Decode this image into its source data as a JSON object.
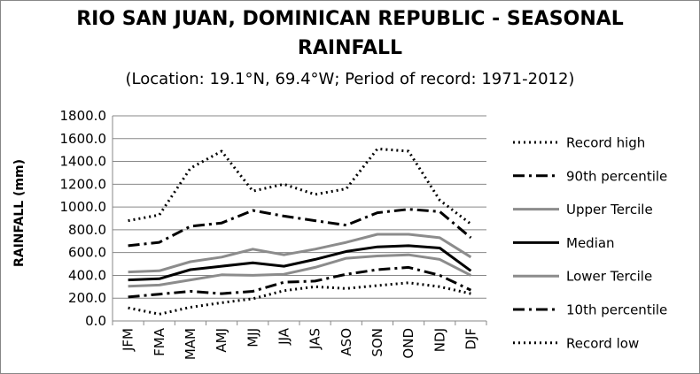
{
  "title_line1": "RIO SAN JUAN, DOMINICAN REPUBLIC - SEASONAL",
  "title_line2": "RAINFALL",
  "subtitle": "(Location: 19.1°N, 69.4°W; Period of record: 1971-2012)",
  "chart_data": {
    "type": "line",
    "title": "RIO SAN JUAN, DOMINICAN REPUBLIC - SEASONAL RAINFALL",
    "subtitle": "(Location: 19.1°N, 69.4°W; Period of record: 1971-2012)",
    "xlabel": "",
    "ylabel": "RAINFALL (mm)",
    "ylim": [
      0,
      1800
    ],
    "yticks": [
      "0.0",
      "200.0",
      "400.0",
      "600.0",
      "800.0",
      "1000.0",
      "1200.0",
      "1400.0",
      "1600.0",
      "1800.0"
    ],
    "grid": "horizontal",
    "legend_position": "right",
    "categories": [
      "JFM",
      "FMA",
      "MAM",
      "AMJ",
      "MJJ",
      "JJA",
      "JAS",
      "ASO",
      "SON",
      "OND",
      "NDJ",
      "DJF"
    ],
    "series": [
      {
        "name": "Record high",
        "color": "#000000",
        "style": "dotted",
        "values": [
          880,
          930,
          1340,
          1490,
          1140,
          1200,
          1110,
          1160,
          1510,
          1490,
          1060,
          850
        ]
      },
      {
        "name": "90th percentile",
        "color": "#000000",
        "style": "dashdot",
        "values": [
          660,
          690,
          830,
          860,
          970,
          920,
          880,
          840,
          950,
          980,
          960,
          730
        ]
      },
      {
        "name": "Upper Tercile",
        "color": "#8c8c8c",
        "style": "solid",
        "values": [
          430,
          440,
          520,
          560,
          630,
          580,
          630,
          690,
          760,
          760,
          730,
          560
        ]
      },
      {
        "name": "Median",
        "color": "#000000",
        "style": "solid",
        "values": [
          360,
          370,
          450,
          480,
          510,
          480,
          540,
          610,
          650,
          660,
          640,
          440
        ]
      },
      {
        "name": "Lower Tercile",
        "color": "#8c8c8c",
        "style": "solid",
        "values": [
          305,
          315,
          360,
          405,
          400,
          410,
          470,
          550,
          570,
          580,
          540,
          400
        ]
      },
      {
        "name": "10th percentile",
        "color": "#000000",
        "style": "dashdot",
        "values": [
          210,
          235,
          260,
          240,
          260,
          340,
          350,
          410,
          450,
          470,
          400,
          270
        ]
      },
      {
        "name": "Record low",
        "color": "#000000",
        "style": "dotted",
        "values": [
          115,
          60,
          120,
          160,
          195,
          265,
          300,
          285,
          310,
          335,
          300,
          240
        ]
      }
    ]
  }
}
